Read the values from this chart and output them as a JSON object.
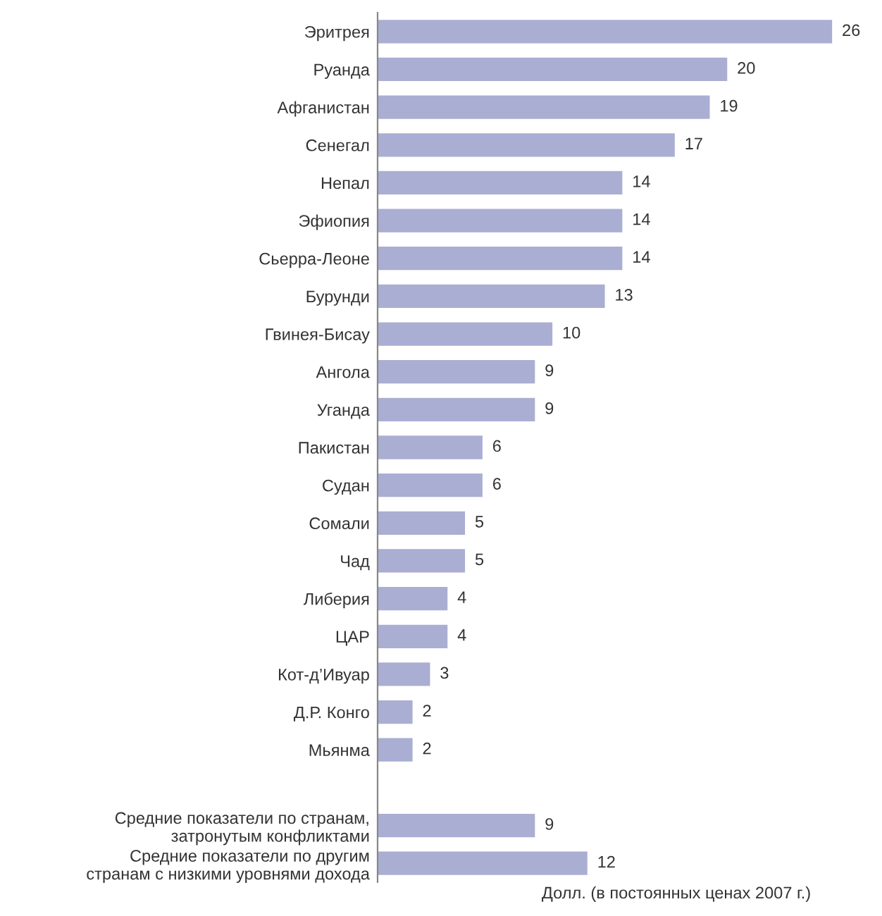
{
  "chart_data": {
    "type": "bar",
    "orientation": "horizontal",
    "xlabel": "Долл. (в постоянных ценах 2007 г.)",
    "categories": [
      "Эритрея",
      "Руанда",
      "Афганистан",
      "Сенегал",
      "Непал",
      "Эфиопия",
      "Сьерра-Леоне",
      "Бурунди",
      "Гвинея-Бисау",
      "Ангола",
      "Уганда",
      "Пакистан",
      "Судан",
      "Сомали",
      "Чад",
      "Либерия",
      "ЦАР",
      "Кот-д’Ивуар",
      "Д.Р. Конго",
      "Мьянма",
      null,
      "Средние показатели по странам,\nзатронутым конфликтами",
      "Средние показатели по другим\nстранам с низкими уровнями дохода"
    ],
    "values": [
      26,
      20,
      19,
      17,
      14,
      14,
      14,
      13,
      10,
      9,
      9,
      6,
      6,
      5,
      5,
      4,
      4,
      3,
      2,
      2,
      null,
      9,
      12
    ],
    "color": "#a9aed2",
    "data_labels": true,
    "grid": false,
    "legend": false
  }
}
